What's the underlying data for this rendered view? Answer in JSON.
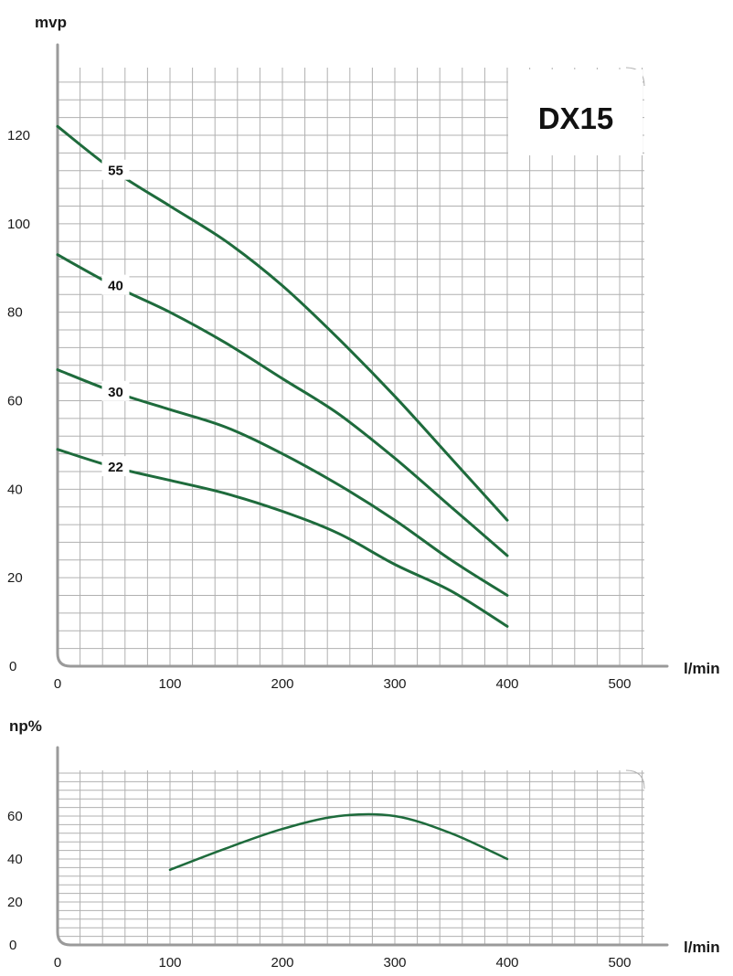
{
  "chart_data": [
    {
      "type": "line",
      "title": "DX15",
      "ylabel": "mvp",
      "xlabel": "l/min",
      "xlim": [
        0,
        500
      ],
      "ylim": [
        0,
        120
      ],
      "xticks": [
        "0",
        "100",
        "200",
        "300",
        "400",
        "500"
      ],
      "yticks": [
        "0",
        "20",
        "40",
        "60",
        "80",
        "100",
        "120"
      ],
      "grid": true,
      "colors": {
        "curve": "#1e6b3c",
        "grid": "#b0b0b0",
        "axis": "#9a9a9a"
      },
      "series": [
        {
          "name": "55",
          "points": [
            [
              0,
              122
            ],
            [
              50,
              112
            ],
            [
              100,
              104
            ],
            [
              150,
              96
            ],
            [
              200,
              86
            ],
            [
              250,
              74
            ],
            [
              300,
              61
            ],
            [
              350,
              47
            ],
            [
              400,
              33
            ]
          ]
        },
        {
          "name": "40",
          "points": [
            [
              0,
              93
            ],
            [
              50,
              86
            ],
            [
              100,
              80
            ],
            [
              150,
              73
            ],
            [
              200,
              65
            ],
            [
              250,
              57
            ],
            [
              300,
              47
            ],
            [
              350,
              36
            ],
            [
              400,
              25
            ]
          ]
        },
        {
          "name": "30",
          "points": [
            [
              0,
              67
            ],
            [
              50,
              62
            ],
            [
              100,
              58
            ],
            [
              150,
              54
            ],
            [
              200,
              48
            ],
            [
              250,
              41
            ],
            [
              300,
              33
            ],
            [
              350,
              24
            ],
            [
              400,
              16
            ]
          ]
        },
        {
          "name": "22",
          "points": [
            [
              0,
              49
            ],
            [
              50,
              45
            ],
            [
              100,
              42
            ],
            [
              150,
              39
            ],
            [
              200,
              35
            ],
            [
              250,
              30
            ],
            [
              300,
              23
            ],
            [
              350,
              17
            ],
            [
              400,
              9
            ]
          ]
        }
      ]
    },
    {
      "type": "line",
      "title": "",
      "ylabel": "np%",
      "xlabel": "l/min",
      "xlim": [
        0,
        500
      ],
      "ylim": [
        0,
        60
      ],
      "xticks": [
        "0",
        "100",
        "200",
        "300",
        "400",
        "500"
      ],
      "yticks": [
        "0",
        "20",
        "40",
        "60"
      ],
      "grid": true,
      "series": [
        {
          "name": "",
          "points": [
            [
              100,
              35
            ],
            [
              150,
              45
            ],
            [
              200,
              54
            ],
            [
              250,
              60
            ],
            [
              300,
              60
            ],
            [
              350,
              52
            ],
            [
              400,
              40
            ]
          ]
        }
      ]
    }
  ]
}
